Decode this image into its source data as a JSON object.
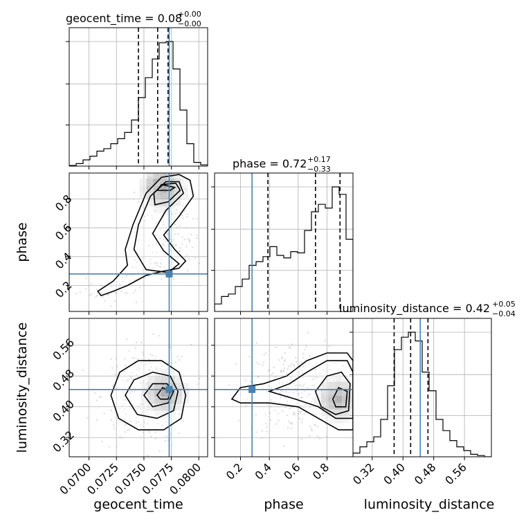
{
  "chart_data": {
    "type": "corner",
    "parameters": [
      "geocent_time",
      "phase",
      "luminosity_distance"
    ],
    "truth": {
      "geocent_time": 0.0773,
      "phase": 0.28,
      "luminosity_distance": 0.445
    },
    "colors": {
      "truth": "#4682b4",
      "hist": "#000000",
      "grid": "#b0b0b0",
      "points": "#a9a9a9"
    },
    "titles": [
      {
        "param": "geocent_time",
        "text": "geocent_time = 0.08",
        "plus": "+0.00",
        "minus": "−0.00"
      },
      {
        "param": "phase",
        "text": "phase = 0.72",
        "plus": "+0.17",
        "minus": "−0.33"
      },
      {
        "param": "luminosity_distance",
        "text": "luminosity_distance = 0.42",
        "plus": "+0.05",
        "minus": "−0.04"
      }
    ],
    "axes": {
      "geocent_time": {
        "label": "geocent_time",
        "range": [
          0.0682,
          0.0808
        ],
        "ticks": [
          0.07,
          0.0725,
          0.075,
          0.0775,
          0.08
        ],
        "tick_labels": [
          "0.0700",
          "0.0725",
          "0.0750",
          "0.0775",
          "0.0800"
        ]
      },
      "phase": {
        "label": "phase",
        "range": [
          0.02,
          0.98
        ],
        "ticks": [
          0.2,
          0.4,
          0.6,
          0.8
        ],
        "tick_labels": [
          "0.2",
          "0.4",
          "0.6",
          "0.8"
        ]
      },
      "luminosity_distance": {
        "label": "luminosity_distance",
        "range": [
          0.27,
          0.63
        ],
        "ticks": [
          0.32,
          0.4,
          0.48,
          0.56
        ],
        "tick_labels": [
          "0.32",
          "0.40",
          "0.48",
          "0.56"
        ]
      }
    },
    "marginals": {
      "geocent_time": {
        "bin_edges": [
          0.0682,
          0.06883,
          0.06946,
          0.07009,
          0.07072,
          0.07135,
          0.07198,
          0.07261,
          0.07324,
          0.07387,
          0.0745,
          0.07513,
          0.07576,
          0.07639,
          0.07702,
          0.07765,
          0.07828,
          0.07891,
          0.07954,
          0.08017,
          0.0808
        ],
        "counts": [
          0.005,
          0.02,
          0.05,
          0.08,
          0.12,
          0.14,
          0.18,
          0.22,
          0.27,
          0.37,
          0.55,
          0.71,
          0.86,
          0.99,
          1.0,
          0.78,
          0.45,
          0.18,
          0.03,
          0.01
        ],
        "quantiles": [
          0.0745,
          0.07625,
          0.0772
        ]
      },
      "phase": {
        "bin_edges": [
          0.02,
          0.068,
          0.116,
          0.164,
          0.212,
          0.26,
          0.308,
          0.356,
          0.404,
          0.452,
          0.5,
          0.548,
          0.596,
          0.644,
          0.692,
          0.74,
          0.788,
          0.836,
          0.884,
          0.932,
          0.98
        ],
        "counts": [
          0.06,
          0.12,
          0.14,
          0.2,
          0.26,
          0.37,
          0.4,
          0.44,
          0.52,
          0.45,
          0.43,
          0.48,
          0.47,
          0.65,
          0.8,
          0.86,
          0.83,
          1.0,
          0.94,
          0.58
        ],
        "quantiles": [
          0.39,
          0.72,
          0.89
        ]
      },
      "luminosity_distance": {
        "bin_edges": [
          0.27,
          0.288,
          0.306,
          0.324,
          0.342,
          0.36,
          0.378,
          0.396,
          0.414,
          0.432,
          0.45,
          0.468,
          0.486,
          0.504,
          0.522,
          0.54,
          0.558,
          0.576,
          0.594,
          0.612,
          0.63
        ],
        "counts": [
          0.03,
          0.08,
          0.12,
          0.16,
          0.3,
          0.57,
          0.86,
          0.96,
          1.0,
          0.93,
          0.68,
          0.53,
          0.3,
          0.21,
          0.13,
          0.08,
          0.05,
          0.02,
          0.01,
          0.0
        ],
        "quantiles": [
          0.377,
          0.42,
          0.465
        ]
      }
    },
    "joint": {
      "phase_vs_geocent_time": {
        "x": "geocent_time",
        "y": "phase",
        "density_peak": [
          0.0768,
          0.87
        ],
        "contours": [
          [
            [
              0.0711,
              0.13
            ],
            [
              0.0722,
              0.16
            ],
            [
              0.0735,
              0.2
            ],
            [
              0.0752,
              0.27
            ],
            [
              0.0768,
              0.3
            ],
            [
              0.0782,
              0.32
            ],
            [
              0.0788,
              0.37
            ],
            [
              0.0778,
              0.45
            ],
            [
              0.0768,
              0.55
            ],
            [
              0.0782,
              0.68
            ],
            [
              0.0795,
              0.82
            ],
            [
              0.0792,
              0.93
            ],
            [
              0.0782,
              0.97
            ],
            [
              0.0766,
              0.95
            ],
            [
              0.0752,
              0.84
            ],
            [
              0.074,
              0.62
            ],
            [
              0.0733,
              0.45
            ],
            [
              0.0735,
              0.34
            ],
            [
              0.0722,
              0.23
            ],
            [
              0.0708,
              0.16
            ],
            [
              0.0711,
              0.13
            ]
          ],
          [
            [
              0.0752,
              0.31
            ],
            [
              0.0772,
              0.29
            ],
            [
              0.0782,
              0.35
            ],
            [
              0.0768,
              0.44
            ],
            [
              0.0758,
              0.56
            ],
            [
              0.077,
              0.72
            ],
            [
              0.0786,
              0.84
            ],
            [
              0.0782,
              0.92
            ],
            [
              0.077,
              0.92
            ],
            [
              0.0756,
              0.82
            ],
            [
              0.0745,
              0.62
            ],
            [
              0.0741,
              0.45
            ],
            [
              0.0752,
              0.31
            ]
          ],
          [
            [
              0.076,
              0.76
            ],
            [
              0.0772,
              0.78
            ],
            [
              0.0783,
              0.86
            ],
            [
              0.0779,
              0.91
            ],
            [
              0.0767,
              0.9
            ],
            [
              0.0759,
              0.84
            ],
            [
              0.076,
              0.76
            ]
          ],
          [
            [
              0.0762,
              0.86
            ],
            [
              0.0774,
              0.86
            ],
            [
              0.0778,
              0.88
            ],
            [
              0.0766,
              0.9
            ],
            [
              0.0762,
              0.86
            ]
          ]
        ]
      },
      "luminosity_distance_vs_geocent_time": {
        "x": "geocent_time",
        "y": "luminosity_distance",
        "density_peak": [
          0.0769,
          0.435
        ],
        "contours": [
          [
            [
              0.072,
              0.43
            ],
            [
              0.0728,
              0.49
            ],
            [
              0.0745,
              0.52
            ],
            [
              0.0766,
              0.52
            ],
            [
              0.0782,
              0.49
            ],
            [
              0.0788,
              0.43
            ],
            [
              0.0784,
              0.37
            ],
            [
              0.0768,
              0.34
            ],
            [
              0.0745,
              0.34
            ],
            [
              0.0727,
              0.37
            ],
            [
              0.072,
              0.43
            ]
          ],
          [
            [
              0.0733,
              0.43
            ],
            [
              0.0741,
              0.47
            ],
            [
              0.0758,
              0.49
            ],
            [
              0.0774,
              0.48
            ],
            [
              0.0781,
              0.44
            ],
            [
              0.0777,
              0.39
            ],
            [
              0.0762,
              0.37
            ],
            [
              0.0744,
              0.38
            ],
            [
              0.0733,
              0.43
            ]
          ],
          [
            [
              0.075,
              0.43
            ],
            [
              0.0758,
              0.46
            ],
            [
              0.0771,
              0.46
            ],
            [
              0.0777,
              0.44
            ],
            [
              0.0772,
              0.41
            ],
            [
              0.0758,
              0.4
            ],
            [
              0.075,
              0.43
            ]
          ],
          [
            [
              0.0762,
              0.43
            ],
            [
              0.0767,
              0.45
            ],
            [
              0.0774,
              0.44
            ],
            [
              0.0772,
              0.42
            ],
            [
              0.0765,
              0.42
            ],
            [
              0.0762,
              0.43
            ]
          ]
        ]
      },
      "luminosity_distance_vs_phase": {
        "x": "phase",
        "y": "luminosity_distance",
        "density_peak": [
          0.88,
          0.42
        ],
        "contours": [
          [
            [
              0.14,
              0.42
            ],
            [
              0.2,
              0.45
            ],
            [
              0.36,
              0.46
            ],
            [
              0.52,
              0.48
            ],
            [
              0.66,
              0.52
            ],
            [
              0.8,
              0.54
            ],
            [
              0.94,
              0.54
            ],
            [
              0.98,
              0.52
            ],
            [
              0.98,
              0.34
            ],
            [
              0.88,
              0.34
            ],
            [
              0.74,
              0.37
            ],
            [
              0.6,
              0.4
            ],
            [
              0.4,
              0.41
            ],
            [
              0.2,
              0.41
            ],
            [
              0.14,
              0.42
            ]
          ],
          [
            [
              0.4,
              0.44
            ],
            [
              0.54,
              0.46
            ],
            [
              0.66,
              0.49
            ],
            [
              0.8,
              0.52
            ],
            [
              0.94,
              0.52
            ],
            [
              0.98,
              0.49
            ],
            [
              0.98,
              0.37
            ],
            [
              0.86,
              0.37
            ],
            [
              0.74,
              0.4
            ],
            [
              0.58,
              0.42
            ],
            [
              0.4,
              0.44
            ]
          ],
          [
            [
              0.72,
              0.44
            ],
            [
              0.8,
              0.48
            ],
            [
              0.9,
              0.49
            ],
            [
              0.96,
              0.46
            ],
            [
              0.95,
              0.39
            ],
            [
              0.86,
              0.38
            ],
            [
              0.76,
              0.4
            ],
            [
              0.72,
              0.44
            ]
          ],
          [
            [
              0.84,
              0.42
            ],
            [
              0.88,
              0.45
            ],
            [
              0.94,
              0.44
            ],
            [
              0.93,
              0.4
            ],
            [
              0.86,
              0.4
            ],
            [
              0.84,
              0.42
            ]
          ]
        ]
      }
    }
  }
}
